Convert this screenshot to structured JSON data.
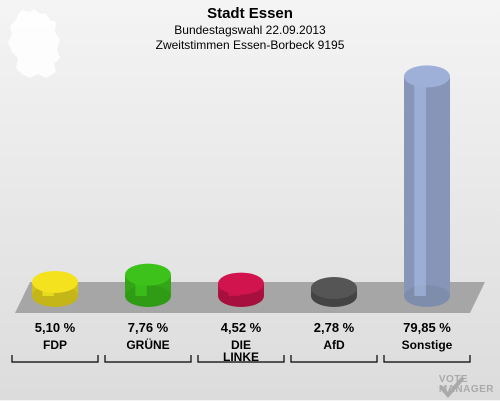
{
  "header": {
    "title": "Stadt Essen",
    "subtitle_line1": "Bundestagswahl 22.09.2013",
    "subtitle_line2": "Zweitstimmen Essen-Borbeck 9195"
  },
  "chart_data": {
    "type": "bar",
    "title": "Stadt Essen",
    "subtitle": "Bundestagswahl 22.09.2013 / Zweitstimmen Essen-Borbeck 9195",
    "categories": [
      "FDP",
      "GRÜNE",
      "DIE LINKE",
      "AfD",
      "Sonstige"
    ],
    "values": [
      5.1,
      7.76,
      4.52,
      2.78,
      79.85
    ],
    "value_labels": [
      "5,10 %",
      "7,76 %",
      "4,52 %",
      "2,78 %",
      "79,85 %"
    ],
    "colors": [
      "#f5e21f",
      "#3cc21a",
      "#d1144d",
      "#555555",
      "#9fb0d8"
    ],
    "party_labels": [
      "FDP",
      "GRÜNE",
      "DIE\nLINKE",
      "AfD",
      "Sonstige"
    ],
    "ylim": [
      0,
      80
    ],
    "grid": false,
    "legend": "none"
  },
  "watermark": {
    "line1": "VOTE",
    "line2": "MANAGER"
  }
}
